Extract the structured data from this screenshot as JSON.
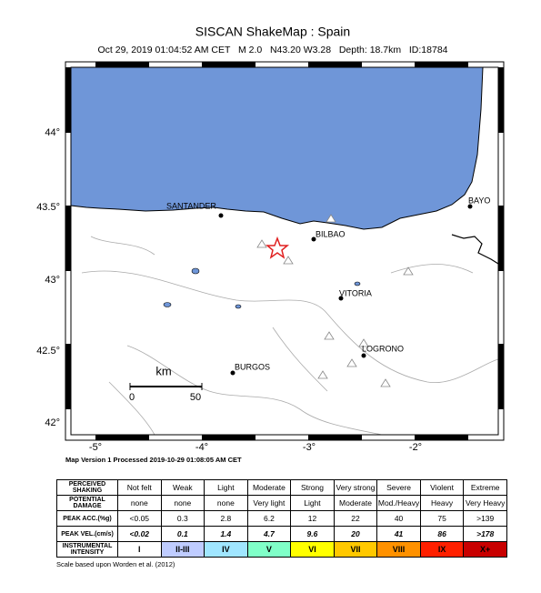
{
  "header": {
    "title": "SISCAN ShakeMap : Spain",
    "subtitle": "Oct 29, 2019 01:04:52 AM CET   M 2.0   N43.20 W3.28   Depth: 18.7km   ID:18784"
  },
  "map": {
    "lat_labels": [
      "44°",
      "43.5°",
      "43°",
      "42.5°",
      "42°"
    ],
    "lon_labels": [
      "-5°",
      "-4°",
      "-3°",
      "-2°"
    ],
    "cities": [
      "SANTANDER",
      "BILBAO",
      "BAYO",
      "VITORIA",
      "LOGRONO",
      "BURGOS"
    ],
    "scale": {
      "unit": "km",
      "start": "0",
      "end": "50"
    }
  },
  "footer": "Map Version 1 Processed 2019-10-29 01:08:05 AM CET",
  "table": {
    "rows": [
      {
        "header": "PERCEIVED SHAKING",
        "cells": [
          "Not felt",
          "Weak",
          "Light",
          "Moderate",
          "Strong",
          "Very strong",
          "Severe",
          "Violent",
          "Extreme"
        ]
      },
      {
        "header": "POTENTIAL DAMAGE",
        "cells": [
          "none",
          "none",
          "none",
          "Very light",
          "Light",
          "Moderate",
          "Mod./Heavy",
          "Heavy",
          "Very Heavy"
        ]
      },
      {
        "header": "PEAK ACC.(%g)",
        "cells": [
          "<0.05",
          "0.3",
          "2.8",
          "6.2",
          "12",
          "22",
          "40",
          "75",
          ">139"
        ]
      },
      {
        "header": "PEAK VEL.(cm/s)",
        "cells": [
          "<0.02",
          "0.1",
          "1.4",
          "4.7",
          "9.6",
          "20",
          "41",
          "86",
          ">178"
        ]
      },
      {
        "header": "INSTRUMENTAL INTENSITY",
        "cells": [
          "I",
          "II-III",
          "IV",
          "V",
          "VI",
          "VII",
          "VIII",
          "IX",
          "X+"
        ]
      }
    ]
  },
  "note": "Scale based upon Worden et al. (2012)"
}
